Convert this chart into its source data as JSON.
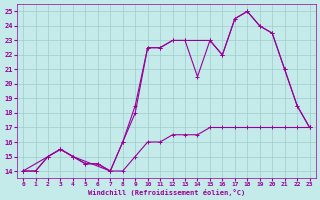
{
  "xlabel": "Windchill (Refroidissement éolien,°C)",
  "bg_color": "#c5eaea",
  "grid_color": "#a0cccc",
  "line_color": "#990099",
  "xlim": [
    -0.5,
    23.5
  ],
  "ylim": [
    13.5,
    25.5
  ],
  "xticks": [
    0,
    1,
    2,
    3,
    4,
    5,
    6,
    7,
    8,
    9,
    10,
    11,
    12,
    13,
    14,
    15,
    16,
    17,
    18,
    19,
    20,
    21,
    22,
    23
  ],
  "yticks": [
    14,
    15,
    16,
    17,
    18,
    19,
    20,
    21,
    22,
    23,
    24,
    25
  ],
  "line1_x": [
    0,
    1,
    2,
    3,
    4,
    5,
    6,
    7,
    8,
    9,
    10,
    11,
    12,
    13,
    14,
    15,
    16,
    17,
    18,
    19,
    20,
    21,
    22,
    23
  ],
  "line1_y": [
    14,
    14,
    15,
    15.5,
    15,
    14.5,
    14.5,
    14,
    14,
    15,
    16,
    16,
    16.5,
    16.5,
    16.5,
    17,
    17,
    17,
    17,
    17,
    17,
    17,
    17,
    17
  ],
  "line2_x": [
    0,
    2,
    3,
    4,
    7,
    8,
    9,
    10,
    11,
    12,
    13,
    15,
    16,
    17,
    18,
    19,
    20,
    21,
    22,
    23
  ],
  "line2_y": [
    14,
    15,
    15.5,
    15,
    14,
    16,
    18,
    22.5,
    22.5,
    23,
    23,
    23,
    22,
    24.5,
    25,
    24,
    23.5,
    21,
    18.5,
    17
  ],
  "line3_x": [
    0,
    1,
    2,
    3,
    4,
    5,
    6,
    7,
    8,
    9,
    10,
    11,
    12,
    13,
    14,
    15,
    16,
    17,
    18,
    19,
    20,
    21,
    22,
    23
  ],
  "line3_y": [
    14,
    14,
    15,
    15.5,
    15,
    14.5,
    14.5,
    14,
    16,
    18.5,
    22.5,
    22.5,
    23,
    23,
    20.5,
    23,
    22,
    24.5,
    25,
    24,
    23.5,
    21,
    18.5,
    17
  ]
}
